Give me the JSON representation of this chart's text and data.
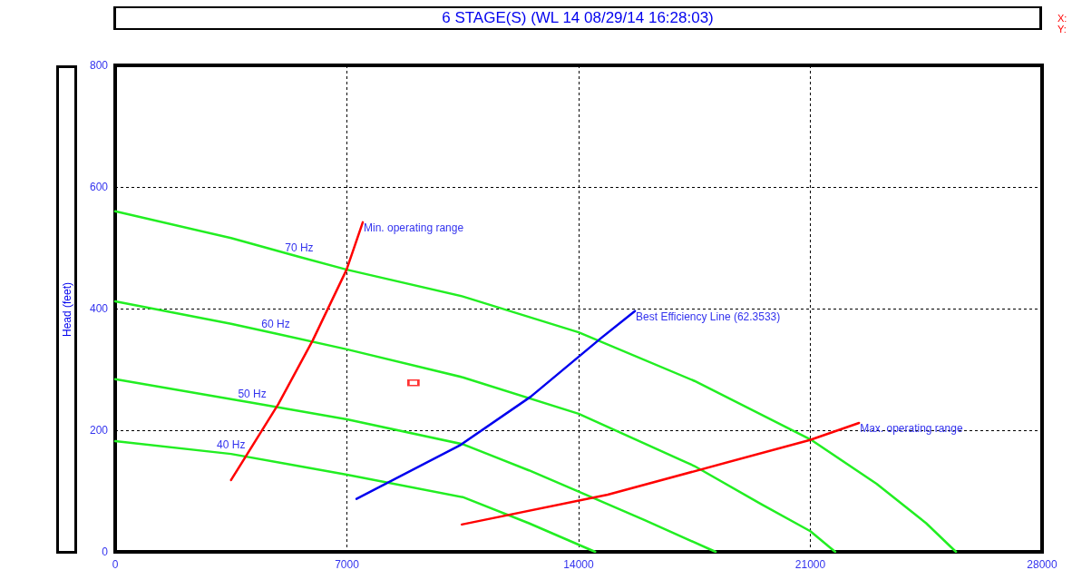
{
  "chart_data": {
    "type": "line",
    "title": "6 STAGE(S) (WL 14 08/29/14 16:28:03)",
    "ylabel": "Head (feet)",
    "xlim": [
      0,
      28000
    ],
    "xticks": [
      0,
      7000,
      14000,
      21000,
      28000
    ],
    "ylim": [
      0,
      800
    ],
    "yticks": [
      0,
      200,
      400,
      600,
      800
    ],
    "grid": true,
    "legend": false,
    "marker": "none",
    "annotations": [
      "X:",
      "Y:",
      {
        "text": "70 Hz",
        "x": 5560,
        "y": 485
      },
      {
        "text": "60 Hz",
        "x": 4850,
        "y": 359
      },
      {
        "text": "50 Hz",
        "x": 4140,
        "y": 245
      },
      {
        "text": "40 Hz",
        "x": 3500,
        "y": 161
      }
    ],
    "series": [
      {
        "color": "#22ee22",
        "x": [
          0,
          3500,
          5560,
          7000,
          10500,
          14000,
          17500,
          21000,
          23000,
          24500,
          25400
        ],
        "values": [
          560,
          516,
          485,
          464,
          420,
          361,
          281,
          185,
          112,
          47,
          0
        ]
      },
      {
        "color": "#22ee22",
        "x": [
          0,
          3500,
          4850,
          7000,
          10500,
          14000,
          17500,
          19500,
          21000,
          21750
        ],
        "values": [
          412,
          375,
          359,
          333,
          287,
          227,
          141,
          79,
          34,
          0
        ]
      },
      {
        "color": "#22ee22",
        "x": [
          0,
          3500,
          4140,
          7000,
          10500,
          12500,
          14000,
          16000,
          18140
        ],
        "values": [
          284,
          251,
          245,
          218,
          177,
          134,
          99,
          52,
          0
        ]
      },
      {
        "color": "#22ee22",
        "x": [
          0,
          3500,
          7000,
          10500,
          12500,
          14500
        ],
        "values": [
          182,
          161,
          127,
          90,
          47,
          0
        ]
      },
      {
        "name": "Min. operating range",
        "color": "#ff0000",
        "x": [
          3500,
          4930,
          5970,
          6990,
          7480
        ],
        "values": [
          118,
          243,
          348,
          464,
          542
        ]
      },
      {
        "name": "Best Efficiency Line (62.3533)",
        "color": "#0000ee",
        "x": [
          7290,
          10440,
          12550,
          14690,
          15700
        ],
        "values": [
          87,
          176,
          255,
          352,
          396
        ]
      },
      {
        "name": "Max. operating range",
        "color": "#ff0000",
        "x": [
          10470,
          14880,
          20990,
          22470
        ],
        "values": [
          45,
          94,
          184,
          212
        ]
      },
      {
        "type": "scatter",
        "marker": "square",
        "color": "#ff0000",
        "x": [
          9010
        ],
        "values": [
          278
        ]
      }
    ]
  }
}
